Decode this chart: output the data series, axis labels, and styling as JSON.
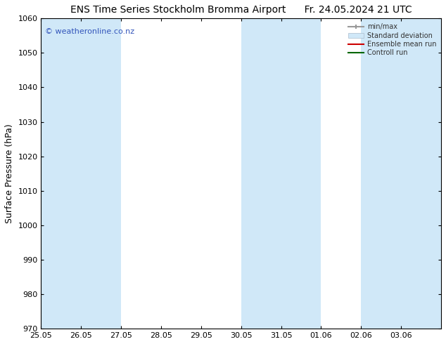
{
  "title_left": "ENS Time Series Stockholm Bromma Airport",
  "title_right": "Fr. 24.05.2024 21 UTC",
  "ylabel": "Surface Pressure (hPa)",
  "ylim": [
    970,
    1060
  ],
  "yticks": [
    970,
    980,
    990,
    1000,
    1010,
    1020,
    1030,
    1040,
    1050,
    1060
  ],
  "x_tick_labels": [
    "25.05",
    "26.05",
    "27.05",
    "28.05",
    "29.05",
    "30.05",
    "31.05",
    "01.06",
    "02.06",
    "03.06"
  ],
  "watermark": "© weatheronline.co.nz",
  "watermark_color": "#3355bb",
  "bg_color": "#ffffff",
  "plot_bg_color": "#ffffff",
  "shaded_band_color": "#d0e8f8",
  "shaded_band_alpha": 1.0,
  "shaded_columns": [
    0,
    1,
    5,
    6,
    8,
    9
  ],
  "title_fontsize": 10,
  "axis_label_fontsize": 9,
  "tick_fontsize": 8,
  "legend_label_color": "#333333"
}
